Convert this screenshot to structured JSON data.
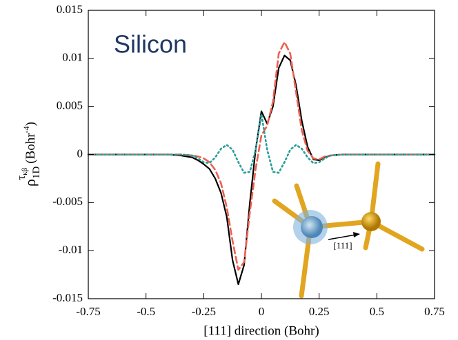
{
  "chart_data": {
    "type": "line",
    "annotation": "Silicon",
    "inset_label": "[111]",
    "x_label": "[111] direction (Bohr)",
    "y_label": {
      "symbol": "ρ",
      "superscript": "τ",
      "superscript_sub": "κβ",
      "subscript": "1D",
      "unit": "(Bohr",
      "unit_exponent": "-4",
      "unit_close": ")"
    },
    "x": [
      -0.75,
      -0.5,
      -0.4,
      -0.35,
      -0.3,
      -0.275,
      -0.25,
      -0.225,
      -0.2,
      -0.175,
      -0.15,
      -0.125,
      -0.1,
      -0.075,
      -0.05,
      -0.025,
      0,
      0.025,
      0.05,
      0.075,
      0.1,
      0.125,
      0.15,
      0.175,
      0.2,
      0.225,
      0.25,
      0.275,
      0.3,
      0.35,
      0.4,
      0.5,
      0.75
    ],
    "series": [
      {
        "color": "#000000",
        "dash": "solid",
        "values": [
          0,
          0,
          0,
          -0.0001,
          -0.0003,
          -0.0006,
          -0.001,
          -0.0015,
          -0.0025,
          -0.004,
          -0.0065,
          -0.011,
          -0.0135,
          -0.0115,
          -0.005,
          0.0005,
          0.0045,
          0.0032,
          0.005,
          0.009,
          0.0103,
          0.0098,
          0.0072,
          0.0035,
          0.0008,
          -0.0005,
          -0.0006,
          -0.0003,
          -0.0001,
          0,
          0,
          0,
          0
        ]
      },
      {
        "color": "#ef5f4f",
        "dash": "dashed",
        "values": [
          0,
          0,
          0,
          0,
          -0.0001,
          -0.0002,
          -0.0004,
          -0.0008,
          -0.0016,
          -0.003,
          -0.0055,
          -0.009,
          -0.012,
          -0.0112,
          -0.006,
          -0.0015,
          0.002,
          0.003,
          0.0055,
          0.0105,
          0.0117,
          0.0105,
          0.0065,
          0.0025,
          0.0004,
          -0.0004,
          -0.0005,
          -0.0002,
          -0.0001,
          0,
          0,
          0,
          0
        ]
      },
      {
        "color": "#2a9d98",
        "dash": "dotted",
        "values": [
          0,
          0,
          0,
          0,
          -0.0001,
          -0.0004,
          -0.0008,
          -0.0009,
          -0.0003,
          0.0006,
          0.001,
          0.0005,
          -0.0008,
          -0.0019,
          -0.0018,
          0.0005,
          0.0042,
          0.0005,
          -0.0018,
          -0.0019,
          -0.0008,
          0.0005,
          0.001,
          0.0006,
          -0.0003,
          -0.0009,
          -0.0008,
          -0.0004,
          -0.0001,
          0,
          0,
          0,
          0
        ]
      }
    ],
    "xlim": [
      -0.75,
      0.75
    ],
    "xticks": [
      -0.75,
      -0.5,
      -0.25,
      0,
      0.25,
      0.5,
      0.75
    ],
    "ylim": [
      -0.015,
      0.015
    ],
    "yticks": [
      -0.015,
      -0.01,
      -0.005,
      0,
      0.005,
      0.01,
      0.015
    ]
  }
}
